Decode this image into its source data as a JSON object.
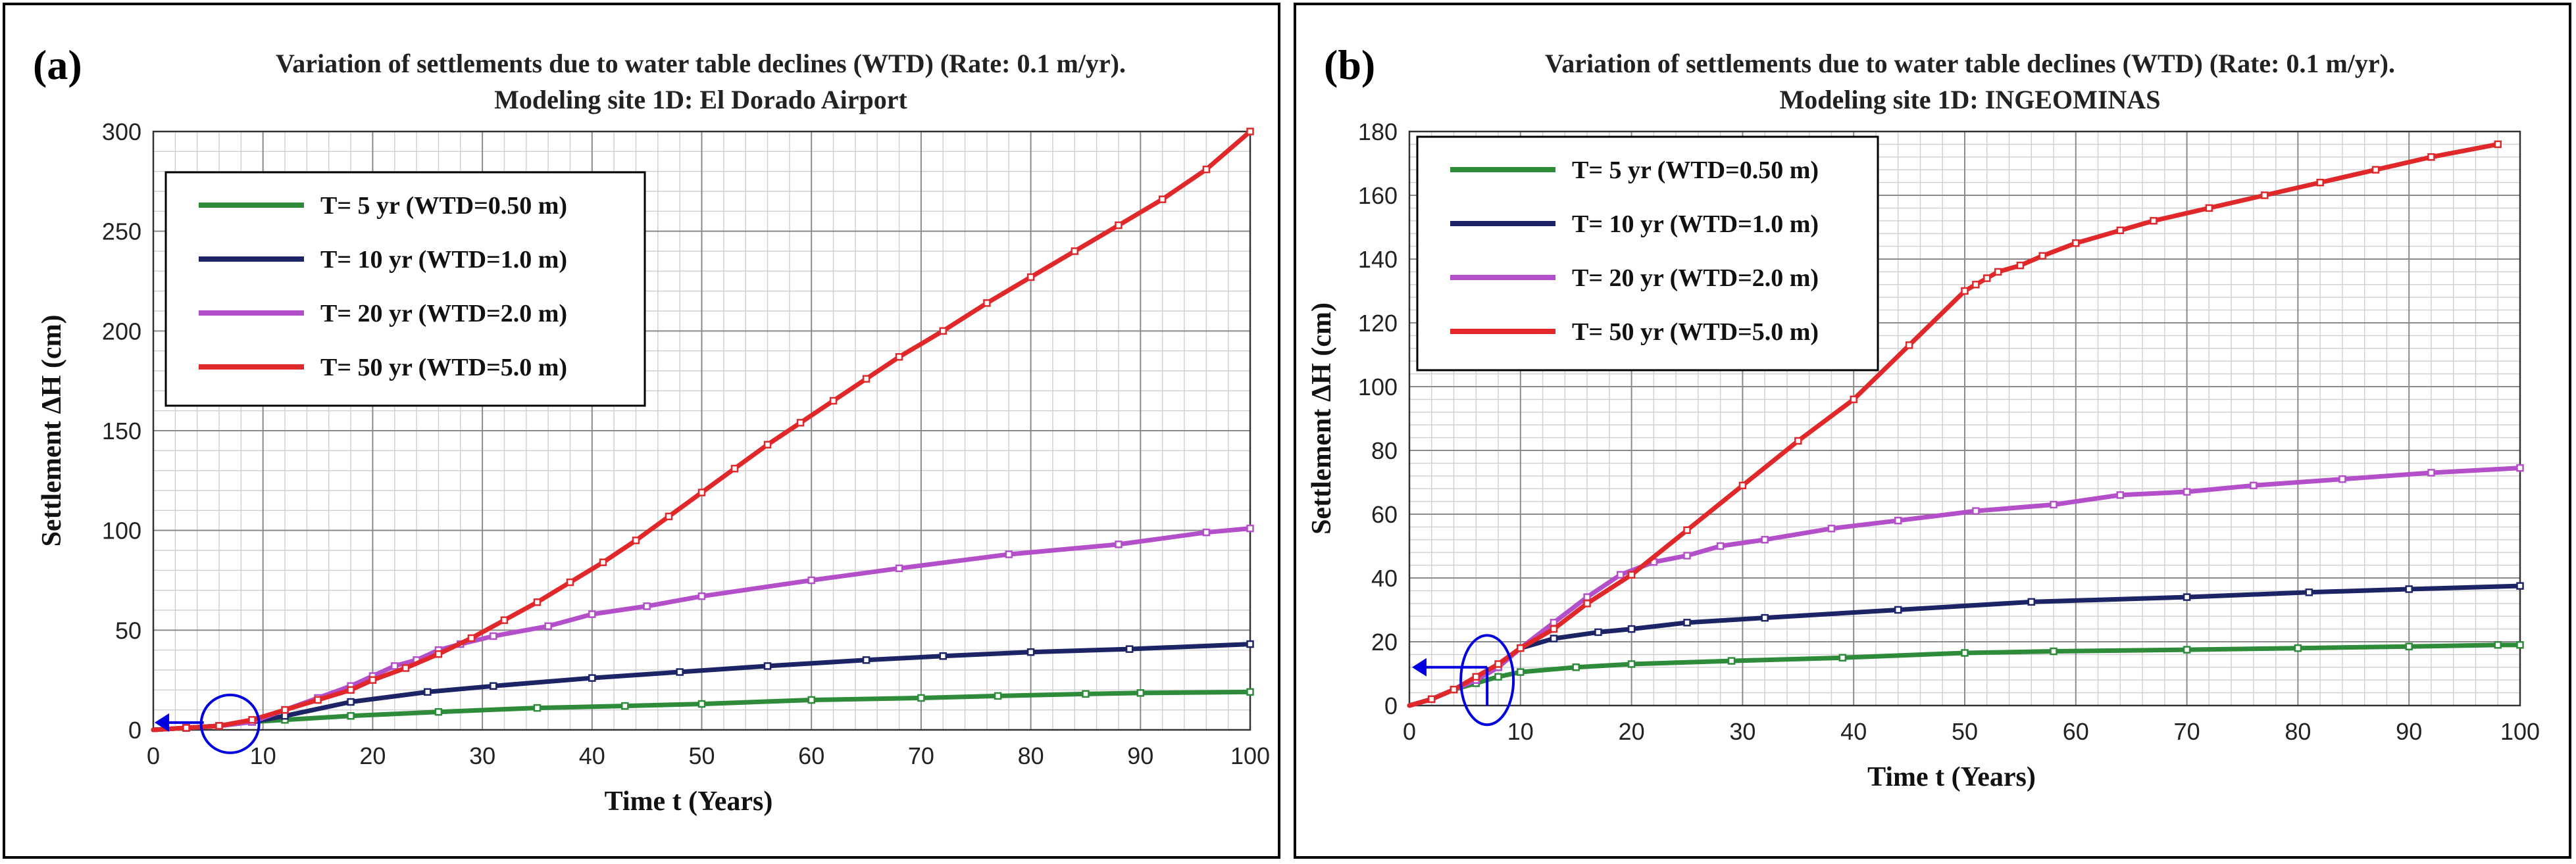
{
  "colors": {
    "green": "#2e8b3a",
    "navy": "#1c2466",
    "purple": "#b34fc8",
    "red": "#e0282a",
    "annotation": "#0000e0"
  },
  "chart_data": [
    {
      "panel_label": "(a)",
      "type": "line",
      "title_line1": "Variation of settlements due to water table declines (WTD) (Rate: 0.1 m/yr).",
      "title_line2": "Modeling site 1D: El Dorado Airport",
      "xlabel": "Time t (Years)",
      "ylabel": "Settlement ΔH (cm)",
      "xlim": [
        0,
        100
      ],
      "ylim": [
        0,
        300
      ],
      "xticks": [
        0,
        10,
        20,
        30,
        40,
        50,
        60,
        70,
        80,
        90,
        100
      ],
      "yticks": [
        0,
        50,
        100,
        150,
        200,
        250,
        300
      ],
      "grid": true,
      "legend_position": "top-left",
      "series": [
        {
          "name": "T= 5 yr (WTD=0.50 m)",
          "color": "#2e8b3a",
          "x": [
            0,
            3,
            6,
            9,
            12,
            18,
            26,
            35,
            43,
            50,
            60,
            70,
            77,
            85,
            90,
            100
          ],
          "y": [
            0,
            1,
            2,
            4,
            5,
            7,
            9,
            11,
            12,
            13,
            15,
            16,
            17,
            18,
            18.5,
            19
          ]
        },
        {
          "name": "T= 10 yr (WTD=1.0 m)",
          "color": "#1c2466",
          "x": [
            0,
            3,
            6,
            9,
            12,
            18,
            25,
            31,
            40,
            48,
            56,
            65,
            72,
            80,
            89,
            100
          ],
          "y": [
            0,
            1,
            2,
            4,
            7,
            14,
            19,
            22,
            26,
            29,
            32,
            35,
            37,
            39,
            40.5,
            43
          ]
        },
        {
          "name": "T= 20 yr (WTD=2.0 m)",
          "color": "#b34fc8",
          "x": [
            0,
            3,
            6,
            9,
            12,
            15,
            18,
            20,
            22,
            24,
            26,
            28,
            31,
            36,
            40,
            45,
            50,
            60,
            68,
            78,
            88,
            96,
            100
          ],
          "y": [
            0,
            1,
            2,
            4,
            10,
            16,
            22,
            27,
            32,
            35,
            40,
            43,
            47,
            52,
            58,
            62,
            67,
            75,
            81,
            88,
            93,
            99,
            101
          ]
        },
        {
          "name": "T= 50 yr (WTD=5.0 m)",
          "color": "#e0282a",
          "x": [
            0,
            3,
            6,
            9,
            12,
            15,
            18,
            20,
            23,
            26,
            29,
            32,
            35,
            38,
            41,
            44,
            47,
            50,
            53,
            56,
            59,
            62,
            65,
            68,
            72,
            76,
            80,
            84,
            88,
            92,
            96,
            100
          ],
          "y": [
            0,
            1,
            2,
            5,
            10,
            15,
            20,
            25,
            31,
            38,
            46,
            55,
            64,
            74,
            84,
            95,
            107,
            119,
            131,
            143,
            154,
            165,
            176,
            187,
            200,
            214,
            227,
            240,
            253,
            266,
            281,
            300
          ]
        }
      ]
    },
    {
      "panel_label": "(b)",
      "type": "line",
      "title_line1": "Variation of settlements due to water table declines (WTD) (Rate: 0.1 m/yr).",
      "title_line2": "Modeling site 1D: INGEOMINAS",
      "xlabel": "Time t (Years)",
      "ylabel": "Settlement ΔH (cm)",
      "xlim": [
        0,
        100
      ],
      "ylim": [
        0,
        180
      ],
      "xticks": [
        0,
        10,
        20,
        30,
        40,
        50,
        60,
        70,
        80,
        90,
        100
      ],
      "yticks": [
        0,
        20,
        40,
        60,
        80,
        100,
        120,
        140,
        160,
        180
      ],
      "grid": true,
      "legend_position": "top-left",
      "series": [
        {
          "name": "T= 5 yr (WTD=0.50 m)",
          "color": "#2e8b3a",
          "x": [
            0,
            2,
            4,
            6,
            8,
            10,
            15,
            20,
            29,
            39,
            50,
            58,
            70,
            80,
            90,
            98,
            100
          ],
          "y": [
            0,
            2,
            5,
            7,
            9,
            10.5,
            12,
            13,
            14,
            15,
            16.5,
            17,
            17.5,
            18,
            18.5,
            19,
            19
          ]
        },
        {
          "name": "T= 10 yr (WTD=1.0 m)",
          "color": "#1c2466",
          "x": [
            0,
            2,
            4,
            6,
            8,
            10,
            13,
            17,
            20,
            25,
            32,
            44,
            56,
            70,
            81,
            90,
            100
          ],
          "y": [
            0,
            2,
            5,
            8,
            12,
            18,
            21,
            23,
            24,
            26,
            27.5,
            30,
            32.5,
            34,
            35.5,
            36.5,
            37.5
          ]
        },
        {
          "name": "T= 20 yr (WTD=2.0 m)",
          "color": "#b34fc8",
          "x": [
            0,
            2,
            4,
            6,
            8,
            10,
            13,
            16,
            19,
            22,
            25,
            28,
            32,
            38,
            44,
            51,
            58,
            64,
            70,
            76,
            84,
            92,
            100
          ],
          "y": [
            0,
            2,
            5,
            8,
            12,
            18,
            26,
            34,
            41,
            45,
            47,
            50,
            52,
            55.5,
            58,
            61,
            63,
            66,
            67,
            69,
            71,
            73,
            74.5
          ]
        },
        {
          "name": "T= 50 yr (WTD=5.0 m)",
          "color": "#e0282a",
          "x": [
            0,
            2,
            4,
            6,
            8,
            10,
            13,
            16,
            20,
            25,
            30,
            35,
            40,
            45,
            50,
            51,
            52,
            53,
            55,
            57,
            60,
            64,
            67,
            72,
            77,
            82,
            87,
            92,
            98
          ],
          "y": [
            0,
            2,
            5,
            9,
            13,
            18,
            24,
            32,
            41,
            55,
            69,
            83,
            96,
            113,
            130,
            132,
            134,
            136,
            138,
            141,
            145,
            149,
            152,
            156,
            160,
            164,
            168,
            172,
            176
          ]
        }
      ]
    }
  ]
}
